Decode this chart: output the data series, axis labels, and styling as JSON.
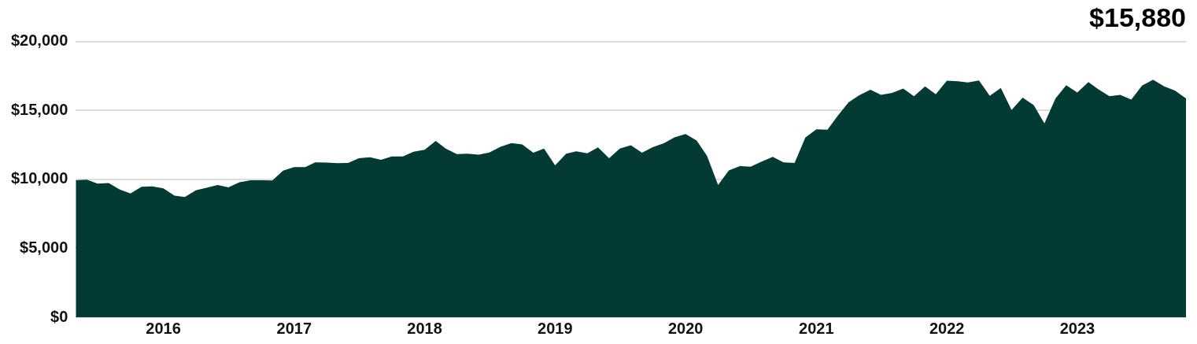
{
  "chart_data": {
    "type": "area",
    "title": "$15,880",
    "x": [
      "2015-05",
      "2015-06",
      "2015-07",
      "2015-08",
      "2015-09",
      "2015-10",
      "2015-11",
      "2015-12",
      "2016-01",
      "2016-02",
      "2016-03",
      "2016-04",
      "2016-05",
      "2016-06",
      "2016-07",
      "2016-08",
      "2016-09",
      "2016-10",
      "2016-11",
      "2016-12",
      "2017-01",
      "2017-02",
      "2017-03",
      "2017-04",
      "2017-05",
      "2017-06",
      "2017-07",
      "2017-08",
      "2017-09",
      "2017-10",
      "2017-11",
      "2017-12",
      "2018-01",
      "2018-02",
      "2018-03",
      "2018-04",
      "2018-05",
      "2018-06",
      "2018-07",
      "2018-08",
      "2018-09",
      "2018-10",
      "2018-11",
      "2018-12",
      "2019-01",
      "2019-02",
      "2019-03",
      "2019-04",
      "2019-05",
      "2019-06",
      "2019-07",
      "2019-08",
      "2019-09",
      "2019-10",
      "2019-11",
      "2019-12",
      "2020-01",
      "2020-02",
      "2020-03",
      "2020-04",
      "2020-05",
      "2020-06",
      "2020-07",
      "2020-08",
      "2020-09",
      "2020-10",
      "2020-11",
      "2020-12",
      "2021-01",
      "2021-02",
      "2021-03",
      "2021-04",
      "2021-05",
      "2021-06",
      "2021-07",
      "2021-08",
      "2021-09",
      "2021-10",
      "2021-11",
      "2021-12",
      "2022-01",
      "2022-02",
      "2022-03",
      "2022-04",
      "2022-05",
      "2022-06",
      "2022-07",
      "2022-08",
      "2022-09",
      "2022-10",
      "2022-11",
      "2022-12",
      "2023-01",
      "2023-02",
      "2023-03",
      "2023-04",
      "2023-05",
      "2023-06",
      "2023-07",
      "2023-08",
      "2023-09",
      "2023-10",
      "2023-11"
    ],
    "series": [
      {
        "color": "#033a33",
        "values": [
          9940,
          9980,
          9700,
          9740,
          9270,
          8980,
          9470,
          9490,
          9350,
          8820,
          8720,
          9210,
          9390,
          9590,
          9430,
          9800,
          9940,
          9940,
          9920,
          10630,
          10900,
          10900,
          11240,
          11220,
          11180,
          11200,
          11540,
          11610,
          11420,
          11670,
          11670,
          12010,
          12150,
          12790,
          12240,
          11830,
          11870,
          11790,
          11950,
          12360,
          12640,
          12540,
          11930,
          12240,
          11020,
          11870,
          12030,
          11890,
          12320,
          11540,
          12240,
          12480,
          11930,
          12340,
          12620,
          13050,
          13290,
          12820,
          11710,
          9590,
          10650,
          10960,
          10920,
          11300,
          11630,
          11240,
          11200,
          13030,
          13640,
          13600,
          14590,
          15590,
          16100,
          16510,
          16140,
          16280,
          16590,
          16040,
          16750,
          16180,
          17160,
          17120,
          17040,
          17180,
          16060,
          16630,
          15040,
          15940,
          15390,
          14070,
          15880,
          16830,
          16300,
          17060,
          16530,
          16040,
          16140,
          15790,
          16810,
          17240,
          16750,
          16450,
          15880
        ]
      }
    ],
    "xlim": [
      "2015-05",
      "2023-11"
    ],
    "xticks": [
      "2016",
      "2017",
      "2018",
      "2019",
      "2020",
      "2021",
      "2022",
      "2023"
    ],
    "ylim": [
      0,
      20000
    ],
    "yticks": [
      {
        "value": 0,
        "label": "$0"
      },
      {
        "value": 5000,
        "label": "$5,000"
      },
      {
        "value": 10000,
        "label": "$10,000"
      },
      {
        "value": 15000,
        "label": "$15,000"
      },
      {
        "value": 20000,
        "label": "$20,000"
      }
    ],
    "grid": "y"
  }
}
